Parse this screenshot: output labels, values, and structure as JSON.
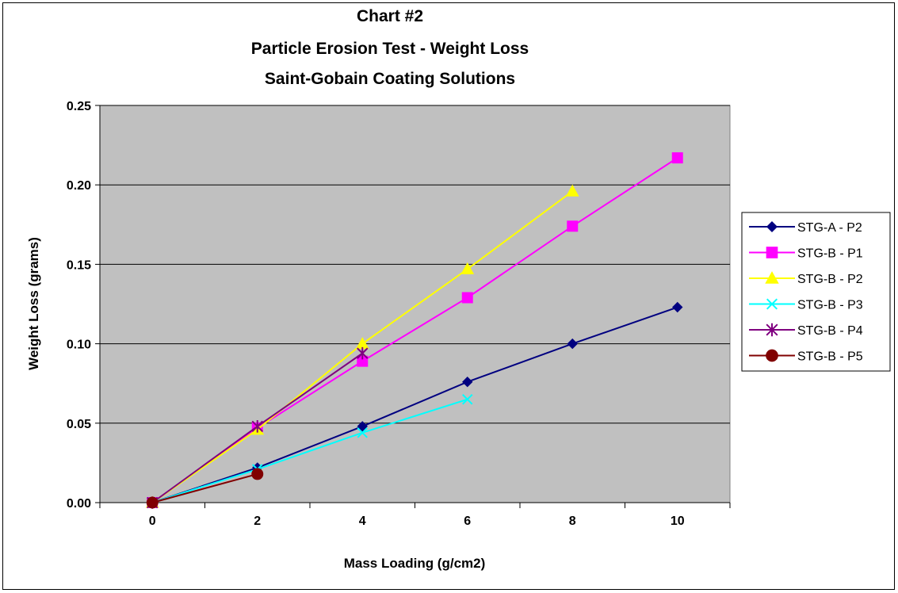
{
  "chart_data": {
    "type": "line",
    "title": [
      "Chart #2",
      "Particle Erosion Test - Weight Loss",
      "Saint-Gobain Coating Solutions"
    ],
    "xlabel": "Mass Loading (g/cm2)",
    "ylabel": "Weight Loss (grams)",
    "xlim": [
      -1,
      11
    ],
    "ylim": [
      0,
      0.25
    ],
    "x_ticks": [
      "0",
      "2",
      "4",
      "6",
      "8",
      "10"
    ],
    "y_ticks": [
      "0.00",
      "0.05",
      "0.10",
      "0.15",
      "0.20",
      "0.25"
    ],
    "plot_background": "#c0c0c0",
    "grid": "horizontal",
    "legend_position": "right",
    "series": [
      {
        "name": "STG-A - P2",
        "color": "#000080",
        "marker": "diamond",
        "x": [
          0,
          2,
          4,
          6,
          8,
          10
        ],
        "y": [
          0.0,
          0.022,
          0.048,
          0.076,
          0.1,
          0.123
        ]
      },
      {
        "name": "STG-B - P1",
        "color": "#ff00ff",
        "marker": "square",
        "x": [
          0,
          2,
          4,
          6,
          8,
          10
        ],
        "y": [
          0.0,
          0.047,
          0.089,
          0.129,
          0.174,
          0.217
        ]
      },
      {
        "name": "STG-B - P2",
        "color": "#ffff00",
        "marker": "triangle",
        "x": [
          0,
          2,
          4,
          6,
          8
        ],
        "y": [
          0.0,
          0.046,
          0.1,
          0.147,
          0.196
        ]
      },
      {
        "name": "STG-B - P3",
        "color": "#00ffff",
        "marker": "x",
        "x": [
          0,
          2,
          4,
          6
        ],
        "y": [
          0.0,
          0.021,
          0.044,
          0.065
        ]
      },
      {
        "name": "STG-B - P4",
        "color": "#800080",
        "marker": "star",
        "x": [
          0,
          2,
          4
        ],
        "y": [
          0.0,
          0.048,
          0.094
        ]
      },
      {
        "name": "STG-B - P5",
        "color": "#800000",
        "marker": "circle",
        "x": [
          0,
          2
        ],
        "y": [
          0.0,
          0.018
        ]
      }
    ]
  }
}
